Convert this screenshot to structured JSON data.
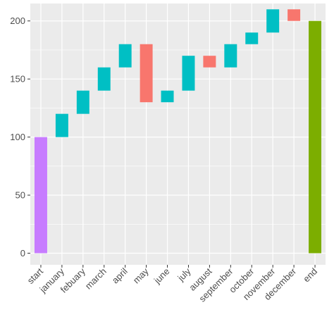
{
  "chart_data": {
    "type": "bar",
    "subtype": "waterfall",
    "title": "",
    "xlabel": "",
    "ylabel": "",
    "ylim": [
      -10,
      215
    ],
    "yticks": [
      0,
      50,
      100,
      150,
      200
    ],
    "grid": true,
    "legend": "none",
    "categories": [
      "start",
      "january",
      "febuary",
      "march",
      "april",
      "may",
      "june",
      "july",
      "august",
      "september",
      "october",
      "november",
      "december",
      "end"
    ],
    "bars": [
      {
        "category": "start",
        "start": 0,
        "end": 100,
        "kind": "total"
      },
      {
        "category": "january",
        "start": 100,
        "end": 120,
        "kind": "increase"
      },
      {
        "category": "febuary",
        "start": 120,
        "end": 140,
        "kind": "increase"
      },
      {
        "category": "march",
        "start": 140,
        "end": 160,
        "kind": "increase"
      },
      {
        "category": "april",
        "start": 160,
        "end": 180,
        "kind": "increase"
      },
      {
        "category": "may",
        "start": 180,
        "end": 130,
        "kind": "decrease"
      },
      {
        "category": "june",
        "start": 130,
        "end": 140,
        "kind": "increase"
      },
      {
        "category": "july",
        "start": 140,
        "end": 170,
        "kind": "increase"
      },
      {
        "category": "august",
        "start": 170,
        "end": 160,
        "kind": "decrease"
      },
      {
        "category": "september",
        "start": 160,
        "end": 180,
        "kind": "increase"
      },
      {
        "category": "october",
        "start": 180,
        "end": 190,
        "kind": "increase"
      },
      {
        "category": "november",
        "start": 190,
        "end": 210,
        "kind": "increase"
      },
      {
        "category": "december",
        "start": 210,
        "end": 200,
        "kind": "decrease"
      },
      {
        "category": "end",
        "start": 0,
        "end": 200,
        "kind": "total-end"
      }
    ],
    "colors": {
      "increase": "#00bfc4",
      "decrease": "#f8766d",
      "total": "#c77cff",
      "total-end": "#7cae00",
      "panel": "#ebebeb",
      "grid": "#ffffff"
    }
  }
}
